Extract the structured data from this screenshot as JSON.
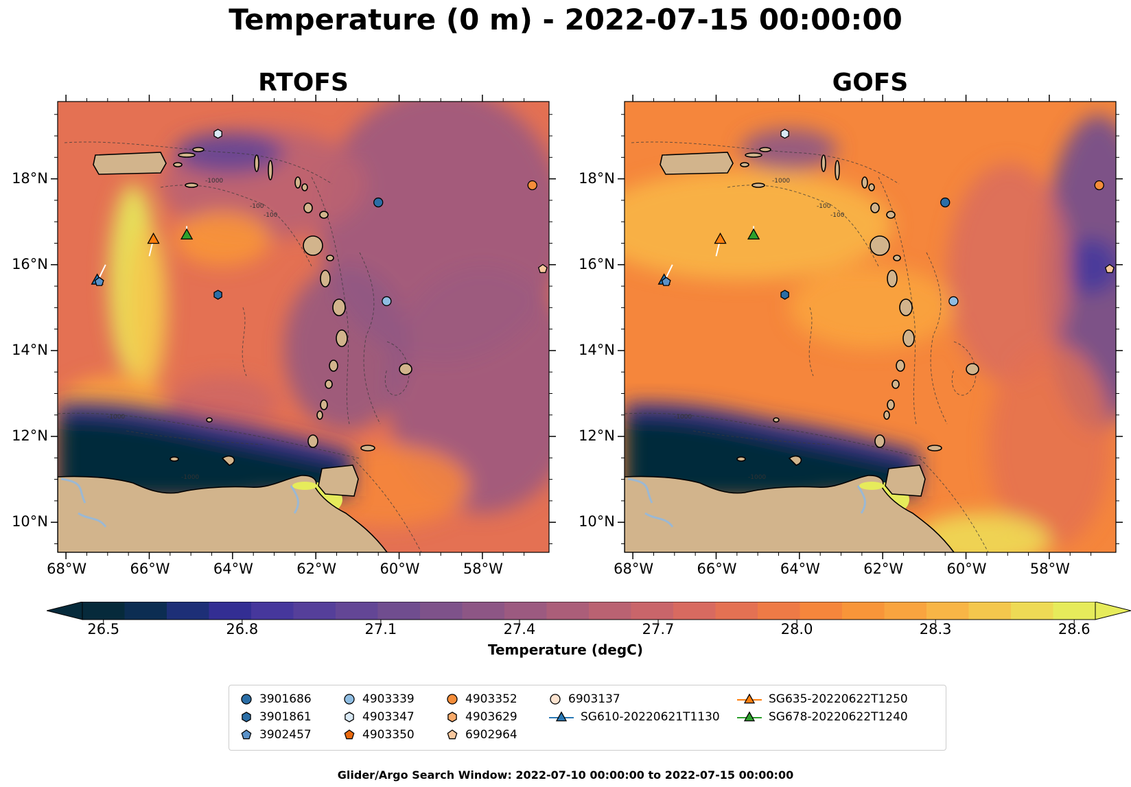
{
  "title": "Temperature (0 m) - 2022-07-15 00:00:00",
  "panels": [
    {
      "title": "RTOFS",
      "hue": "rtofs"
    },
    {
      "title": "GOFS",
      "hue": "gofs"
    }
  ],
  "axes": {
    "lat_labels": [
      "18°N",
      "16°N",
      "14°N",
      "12°N",
      "10°N"
    ],
    "lon_labels": [
      "68°W",
      "66°W",
      "64°W",
      "62°W",
      "60°W",
      "58°W"
    ],
    "lon_range": [
      -68.2,
      -56.4
    ],
    "lat_range": [
      9.3,
      19.8
    ]
  },
  "contour_labels": [
    "-1000",
    "-100"
  ],
  "colorbar": {
    "label": "Temperature (degC)",
    "ticks": [
      "26.5",
      "26.8",
      "27.1",
      "27.4",
      "27.7",
      "28.0",
      "28.3",
      "28.6"
    ],
    "min": 26.5,
    "max": 28.6,
    "colors": [
      "#062a3b",
      "#0c2d52",
      "#1d2f77",
      "#332e93",
      "#46379c",
      "#553f9a",
      "#634695",
      "#704d8f",
      "#7e528a",
      "#8d5685",
      "#9c5a80",
      "#ab5e79",
      "#ba6272",
      "#c9656a",
      "#d86a60",
      "#e47153",
      "#ee7a46",
      "#f5863c",
      "#f89539",
      "#f9a43f",
      "#f8b546",
      "#f4c74d",
      "#eeda55",
      "#e6eb5b"
    ],
    "extend": "both"
  },
  "legend": {
    "items": [
      {
        "label": "3901686",
        "marker": "circle",
        "color": "#2b6ea6"
      },
      {
        "label": "3901861",
        "marker": "hexagon",
        "color": "#2b6ea6"
      },
      {
        "label": "3902457",
        "marker": "pentagon",
        "color": "#5b92c8"
      },
      {
        "label": "4903339",
        "marker": "circle",
        "color": "#8fbde2"
      },
      {
        "label": "4903347",
        "marker": "hexagon",
        "color": "#d9e9f5"
      },
      {
        "label": "4903350",
        "marker": "pentagon",
        "color": "#ea6a0f"
      },
      {
        "label": "4903352",
        "marker": "circle",
        "color": "#f58d3a"
      },
      {
        "label": "4903629",
        "marker": "hexagon",
        "color": "#f8aa6a"
      },
      {
        "label": "6902964",
        "marker": "pentagon",
        "color": "#f9c89e"
      },
      {
        "label": "6903137",
        "marker": "circle",
        "color": "#fde3cf"
      },
      {
        "label": "SG610-20220621T1130",
        "marker": "triangle-line",
        "color": "#2878b5"
      },
      {
        "label": "SG635-20220622T1250",
        "marker": "triangle-line",
        "color": "#ff7f0e"
      },
      {
        "label": "SG678-20220622T1240",
        "marker": "triangle-line",
        "color": "#2ca02c"
      }
    ]
  },
  "floats": [
    {
      "id": "3901686",
      "lon": -60.5,
      "lat": 17.45,
      "marker": "circle",
      "color": "#2b6ea6"
    },
    {
      "id": "3901861",
      "lon": -64.35,
      "lat": 15.3,
      "marker": "hexagon",
      "color": "#2b6ea6"
    },
    {
      "id": "3902457",
      "lon": -67.2,
      "lat": 15.6,
      "marker": "pentagon",
      "color": "#5b92c8"
    },
    {
      "id": "4903339",
      "lon": -60.3,
      "lat": 15.15,
      "marker": "circle",
      "color": "#8fbde2"
    },
    {
      "id": "4903347",
      "lon": -64.35,
      "lat": 19.05,
      "marker": "hexagon",
      "color": "#d9e9f5"
    },
    {
      "id": "4903352",
      "lon": -56.8,
      "lat": 17.85,
      "marker": "circle",
      "color": "#f58d3a"
    },
    {
      "id": "6902964",
      "lon": -56.55,
      "lat": 15.9,
      "marker": "pentagon",
      "color": "#f9c89e"
    }
  ],
  "gliders": [
    {
      "id": "SG610-20220621T1130",
      "lon": -67.25,
      "lat": 15.65,
      "color": "#2878b5",
      "track": [
        [
          -67.05,
          16.0
        ],
        [
          -67.2,
          15.7
        ]
      ]
    },
    {
      "id": "SG635-20220622T1250",
      "lon": -65.9,
      "lat": 16.6,
      "color": "#ff7f0e",
      "track": [
        [
          -66.0,
          16.2
        ],
        [
          -65.9,
          16.6
        ]
      ]
    },
    {
      "id": "SG678-20220622T1240",
      "lon": -65.1,
      "lat": 16.7,
      "color": "#2ca02c",
      "track": [
        [
          -65.1,
          16.9
        ],
        [
          -65.1,
          16.7
        ]
      ]
    }
  ],
  "footer": "Glider/Argo Search Window: 2022-07-10 00:00:00 to 2022-07-15 00:00:00"
}
